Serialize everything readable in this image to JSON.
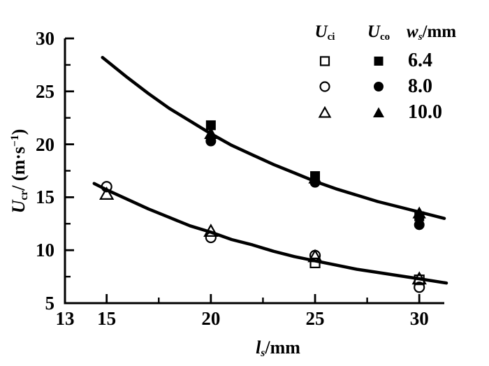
{
  "figure": {
    "background": "#ffffff",
    "ink": "#000000"
  },
  "y_axis_title": {
    "var": "U",
    "sub": "cr",
    "mid": "/ (m·s",
    "sup": "−1",
    "post": ")"
  },
  "x_axis_title": {
    "var": "l",
    "sub": "s",
    "rest": "/mm"
  },
  "legend": {
    "col_headers": [
      {
        "main": "U",
        "sub": "ci"
      },
      {
        "main": "U",
        "sub": "co"
      },
      {
        "main": "w",
        "sub": "s",
        "rest": "/mm"
      }
    ],
    "rows": [
      {
        "ws": "6.4",
        "marker": "square"
      },
      {
        "ws": "8.0",
        "marker": "circle"
      },
      {
        "ws": "10.0",
        "marker": "triangle"
      }
    ]
  },
  "chart_data": {
    "type": "scatter",
    "title": "",
    "xlabel": "l_s/mm",
    "ylabel": "U_cr/(m·s−1)",
    "xlim": [
      13,
      31.2
    ],
    "ylim": [
      5,
      30
    ],
    "x_ticks": [
      13,
      15,
      20,
      25,
      30
    ],
    "x_minor_ticks": [
      17.5,
      22.5,
      27.5
    ],
    "y_ticks": [
      5,
      10,
      15,
      20,
      25,
      30
    ],
    "y_minor_ticks": [
      7.5,
      12.5,
      17.5,
      22.5,
      27.5
    ],
    "grid": false,
    "legend_position": "top-right",
    "series": [
      {
        "name": "U_ci ws=6.4mm",
        "group": "U_ci",
        "ws": 6.4,
        "marker": "square",
        "fill": "open",
        "points": [
          [
            25,
            8.8
          ],
          [
            30,
            7.2
          ]
        ]
      },
      {
        "name": "U_ci ws=8.0mm",
        "group": "U_ci",
        "ws": 8.0,
        "marker": "circle",
        "fill": "open",
        "points": [
          [
            15,
            16.0
          ],
          [
            20,
            11.2
          ],
          [
            25,
            9.5
          ],
          [
            30,
            6.5
          ]
        ]
      },
      {
        "name": "U_ci ws=10.0mm",
        "group": "U_ci",
        "ws": 10.0,
        "marker": "triangle",
        "fill": "open",
        "points": [
          [
            15,
            15.3
          ],
          [
            20,
            11.8
          ],
          [
            25,
            9.4
          ],
          [
            30,
            7.3
          ]
        ]
      },
      {
        "name": "U_co ws=6.4mm",
        "group": "U_co",
        "ws": 6.4,
        "marker": "square",
        "fill": "solid",
        "points": [
          [
            20,
            21.8
          ],
          [
            25,
            17.0
          ],
          [
            30,
            13.2
          ]
        ]
      },
      {
        "name": "U_co ws=8.0mm",
        "group": "U_co",
        "ws": 8.0,
        "marker": "circle",
        "fill": "solid",
        "points": [
          [
            20,
            20.3
          ],
          [
            25,
            16.4
          ],
          [
            30,
            12.4
          ]
        ]
      },
      {
        "name": "U_co ws=10.0mm",
        "group": "U_co",
        "ws": 10.0,
        "marker": "triangle",
        "fill": "solid",
        "points": [
          [
            20,
            21.0
          ],
          [
            25,
            16.8
          ],
          [
            30,
            13.5
          ]
        ]
      }
    ],
    "curves": [
      {
        "name": "U_co fit curve",
        "points": [
          [
            14.8,
            28.2
          ],
          [
            16,
            26.3
          ],
          [
            17,
            24.8
          ],
          [
            18,
            23.4
          ],
          [
            19,
            22.2
          ],
          [
            20,
            21.0
          ],
          [
            21,
            19.9
          ],
          [
            22,
            19.0
          ],
          [
            23,
            18.1
          ],
          [
            24,
            17.3
          ],
          [
            25,
            16.5
          ],
          [
            26,
            15.8
          ],
          [
            27,
            15.2
          ],
          [
            28,
            14.6
          ],
          [
            29,
            14.1
          ],
          [
            30,
            13.6
          ],
          [
            31.2,
            13.0
          ]
        ]
      },
      {
        "name": "U_ci fit curve",
        "points": [
          [
            14.4,
            16.3
          ],
          [
            15,
            15.7
          ],
          [
            16,
            14.8
          ],
          [
            17,
            13.9
          ],
          [
            18,
            13.1
          ],
          [
            19,
            12.3
          ],
          [
            20,
            11.7
          ],
          [
            21,
            11.0
          ],
          [
            22,
            10.5
          ],
          [
            23,
            9.9
          ],
          [
            24,
            9.4
          ],
          [
            25,
            9.0
          ],
          [
            26,
            8.6
          ],
          [
            27,
            8.2
          ],
          [
            28,
            7.9
          ],
          [
            29,
            7.6
          ],
          [
            30,
            7.3
          ],
          [
            31.3,
            6.9
          ]
        ]
      }
    ]
  }
}
